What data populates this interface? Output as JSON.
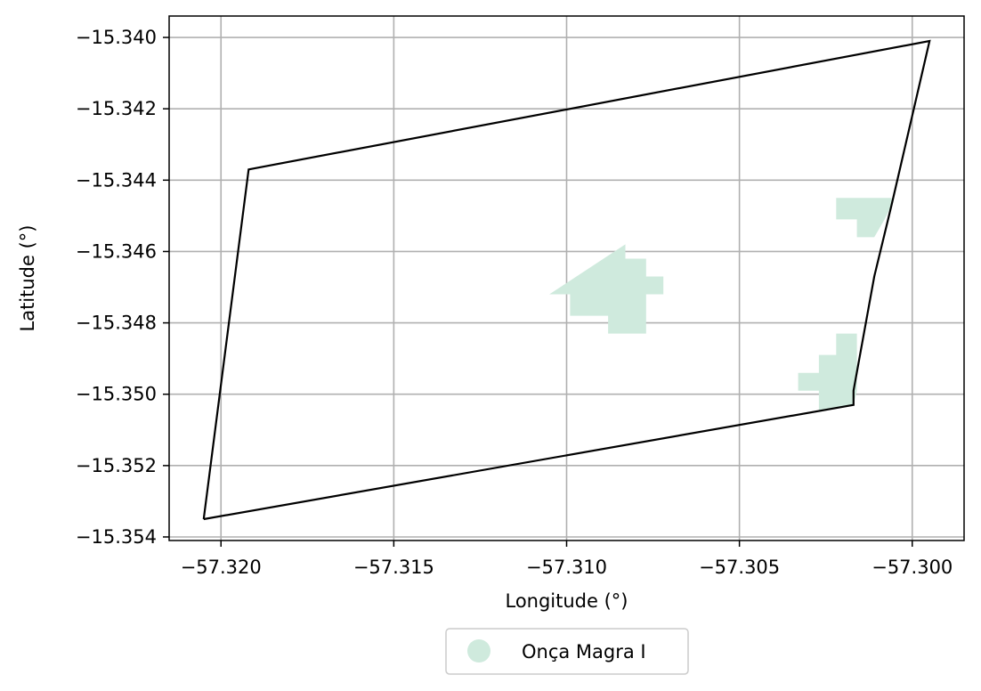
{
  "chart_data": {
    "type": "map",
    "xlabel": "Longitude (°)",
    "ylabel": "Latitude (°)",
    "xlim": [
      -57.3215,
      -57.2985
    ],
    "ylim": [
      -15.3541,
      -15.3394
    ],
    "grid": true,
    "x_ticks": [
      -57.32,
      -57.315,
      -57.31,
      -57.305,
      -57.3
    ],
    "x_tick_labels": [
      "−57.320",
      "−57.315",
      "−57.310",
      "−57.305",
      "−57.300"
    ],
    "y_ticks": [
      -15.34,
      -15.342,
      -15.344,
      -15.346,
      -15.348,
      -15.35,
      -15.352,
      -15.354
    ],
    "y_tick_labels": [
      "−15.340",
      "−15.342",
      "−15.344",
      "−15.346",
      "−15.348",
      "−15.350",
      "−15.352",
      "−15.354"
    ],
    "boundary": {
      "color": "#000000",
      "points": [
        [
          -57.3205,
          -15.3535
        ],
        [
          -57.3192,
          -15.3437
        ],
        [
          -57.2995,
          -15.3401
        ],
        [
          -57.3006,
          -15.3447
        ],
        [
          -57.3011,
          -15.3467
        ],
        [
          -57.3017,
          -15.3499
        ],
        [
          -57.3017,
          -15.3503
        ],
        [
          -57.3205,
          -15.3535
        ]
      ]
    },
    "series": [
      {
        "name": "Onça Magra I",
        "color": "#cfeadd",
        "polygons": [
          [
            [
              -57.3105,
              -15.3472
            ],
            [
              -57.3083,
              -15.3458
            ],
            [
              -57.3083,
              -15.3462
            ],
            [
              -57.3077,
              -15.3462
            ],
            [
              -57.3077,
              -15.3467
            ],
            [
              -57.3072,
              -15.3467
            ],
            [
              -57.3072,
              -15.3472
            ],
            [
              -57.3077,
              -15.3472
            ],
            [
              -57.3077,
              -15.3483
            ],
            [
              -57.3088,
              -15.3483
            ],
            [
              -57.3088,
              -15.3478
            ],
            [
              -57.3099,
              -15.3478
            ],
            [
              -57.3099,
              -15.3472
            ]
          ],
          [
            [
              -57.3022,
              -15.3445
            ],
            [
              -57.3006,
              -15.3445
            ],
            [
              -57.3006,
              -15.3447
            ],
            [
              -57.3008,
              -15.3451
            ],
            [
              -57.3011,
              -15.3456
            ],
            [
              -57.3016,
              -15.3456
            ],
            [
              -57.3016,
              -15.3451
            ],
            [
              -57.3022,
              -15.3451
            ]
          ],
          [
            [
              -57.3022,
              -15.3483
            ],
            [
              -57.3016,
              -15.3483
            ],
            [
              -57.3016,
              -15.3499
            ],
            [
              -57.3017,
              -15.3503
            ],
            [
              -57.3027,
              -15.3505
            ],
            [
              -57.3027,
              -15.3499
            ],
            [
              -57.3033,
              -15.3499
            ],
            [
              -57.3033,
              -15.3494
            ],
            [
              -57.3027,
              -15.3494
            ],
            [
              -57.3027,
              -15.3489
            ],
            [
              -57.3022,
              -15.3489
            ]
          ]
        ]
      }
    ]
  }
}
